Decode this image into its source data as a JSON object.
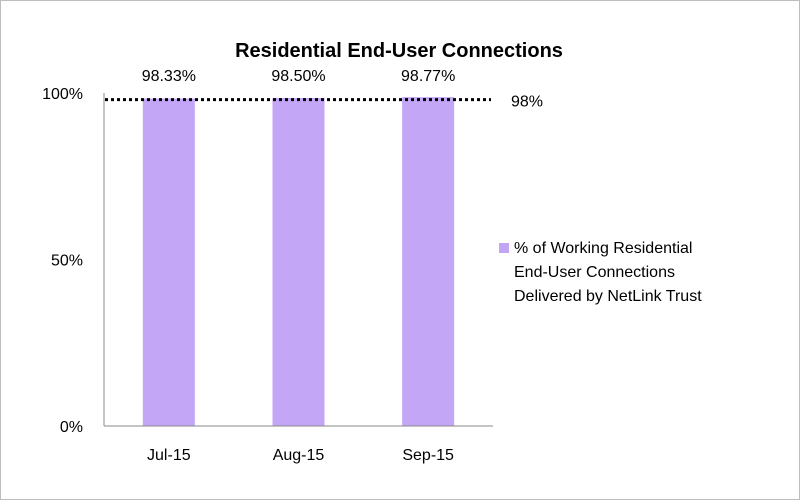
{
  "chart_data": {
    "type": "bar",
    "title": "Residential End-User Connections",
    "categories": [
      "Jul-15",
      "Aug-15",
      "Sep-15"
    ],
    "series": [
      {
        "name": "% of Working Residential End-User Connections Delivered by NetLink Trust",
        "values": [
          98.33,
          98.5,
          98.77
        ],
        "color": "#c4a6f6"
      }
    ],
    "data_labels": [
      "98.33%",
      "98.50%",
      "98.77%"
    ],
    "reference_line": {
      "value": 98,
      "label": "98%",
      "style": "dotted",
      "color": "#000000"
    },
    "yticks": [
      "0%",
      "50%",
      "100%"
    ],
    "ylim": [
      0,
      100
    ],
    "xlabel": "",
    "ylabel": "",
    "grid": false,
    "legend": "right",
    "legend_lines": [
      "% of Working Residential",
      "End-User Connections",
      "Delivered by NetLink Trust"
    ]
  }
}
